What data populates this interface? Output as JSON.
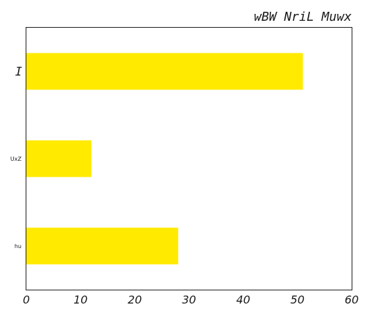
{
  "chart_data": {
    "type": "bar",
    "orientation": "horizontal",
    "title": "wBW NriL Muwx",
    "xlabel": "",
    "ylabel": "",
    "categories": [
      "I",
      "UxZ",
      "hu"
    ],
    "values": [
      51,
      12,
      28
    ],
    "xlim": [
      0,
      60
    ],
    "xticks": [
      0,
      10,
      20,
      30,
      40,
      50,
      60
    ],
    "grid": false,
    "bar_color": "#ffea00",
    "axis_color": "#1a1a1a"
  }
}
